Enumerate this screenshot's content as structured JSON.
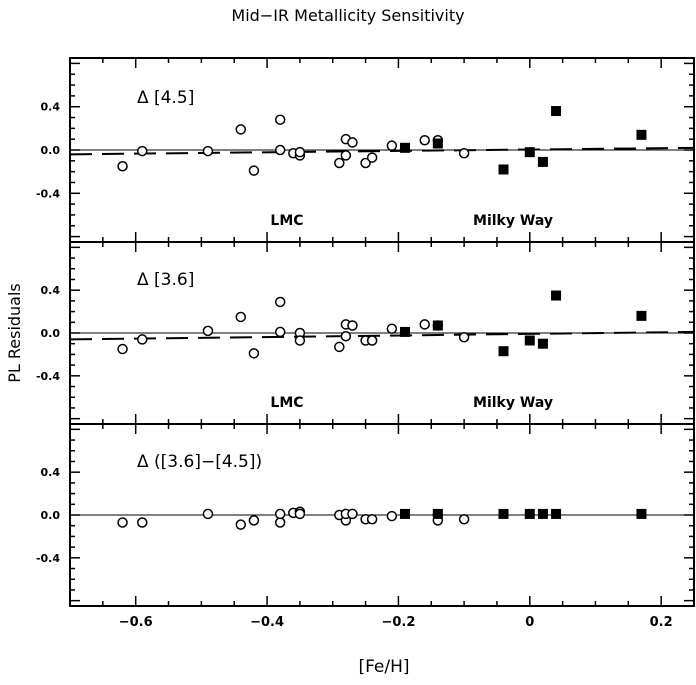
{
  "title": "Mid−IR Metallicity Sensitivity",
  "ylabel": "PL Residuals",
  "xlabel": "[Fe/H]",
  "chart_data": [
    {
      "type": "scatter",
      "panel_label": "Δ [4.5]",
      "xlim": [
        -0.7,
        0.25
      ],
      "ylim": [
        -0.85,
        0.85
      ],
      "xticks": [
        -0.6,
        -0.4,
        -0.2,
        0,
        0.2
      ],
      "xtick_labels": [
        "-0.6",
        "-0.4",
        "-0.2",
        "0",
        "0.2"
      ],
      "show_xtick_labels": false,
      "yticks": [
        -0.4,
        0.0,
        0.4
      ],
      "ytick_labels": [
        "-0.4",
        "0.0",
        "0.4"
      ],
      "annotations": [
        "LMC",
        "Milky Way"
      ],
      "zero_line": true,
      "fit_line": {
        "style": "dashed",
        "x": [
          -0.7,
          0.25
        ],
        "y": [
          -0.04,
          0.02
        ]
      },
      "series": [
        {
          "marker": "open-circle",
          "x": [
            -0.62,
            -0.59,
            -0.49,
            -0.44,
            -0.42,
            -0.38,
            -0.38,
            -0.36,
            -0.35,
            -0.35,
            -0.29,
            -0.28,
            -0.28,
            -0.27,
            -0.25,
            -0.24,
            -0.21,
            -0.16,
            -0.14,
            -0.1
          ],
          "y": [
            -0.15,
            -0.01,
            -0.01,
            0.19,
            -0.19,
            0.28,
            0.0,
            -0.03,
            -0.05,
            -0.02,
            -0.12,
            -0.05,
            0.1,
            0.07,
            -0.12,
            -0.07,
            0.04,
            0.09,
            0.09,
            -0.03
          ]
        },
        {
          "marker": "filled-square",
          "x": [
            -0.19,
            -0.14,
            -0.04,
            0.0,
            0.02,
            0.04,
            0.17
          ],
          "y": [
            0.02,
            0.06,
            -0.18,
            -0.02,
            -0.11,
            0.36,
            0.14
          ]
        }
      ]
    },
    {
      "type": "scatter",
      "panel_label": "Δ [3.6]",
      "xlim": [
        -0.7,
        0.25
      ],
      "ylim": [
        -0.85,
        0.85
      ],
      "xticks": [
        -0.6,
        -0.4,
        -0.2,
        0,
        0.2
      ],
      "xtick_labels": [
        "-0.6",
        "-0.4",
        "-0.2",
        "0",
        "0.2"
      ],
      "show_xtick_labels": false,
      "yticks": [
        -0.4,
        0.0,
        0.4
      ],
      "ytick_labels": [
        "-0.4",
        "0.0",
        "0.4"
      ],
      "annotations": [
        "LMC",
        "Milky Way"
      ],
      "zero_line": true,
      "fit_line": {
        "style": "dashed",
        "x": [
          -0.7,
          0.25
        ],
        "y": [
          -0.06,
          0.01
        ]
      },
      "series": [
        {
          "marker": "open-circle",
          "x": [
            -0.62,
            -0.59,
            -0.49,
            -0.44,
            -0.42,
            -0.38,
            -0.38,
            -0.35,
            -0.35,
            -0.29,
            -0.28,
            -0.28,
            -0.27,
            -0.25,
            -0.24,
            -0.21,
            -0.16,
            -0.14,
            -0.1
          ],
          "y": [
            -0.15,
            -0.06,
            0.02,
            0.15,
            -0.19,
            0.29,
            0.01,
            0.0,
            -0.07,
            -0.13,
            -0.03,
            0.08,
            0.07,
            -0.07,
            -0.07,
            0.04,
            0.08,
            0.07,
            -0.04
          ]
        },
        {
          "marker": "filled-square",
          "x": [
            -0.19,
            -0.14,
            -0.04,
            0.0,
            0.02,
            0.04,
            0.17
          ],
          "y": [
            0.01,
            0.07,
            -0.17,
            -0.07,
            -0.1,
            0.35,
            0.16
          ]
        }
      ]
    },
    {
      "type": "scatter",
      "panel_label": "Δ ([3.6]−[4.5])",
      "xlim": [
        -0.7,
        0.25
      ],
      "ylim": [
        -0.85,
        0.85
      ],
      "xticks": [
        -0.6,
        -0.4,
        -0.2,
        0,
        0.2
      ],
      "xtick_labels": [
        "−0.6",
        "−0.4",
        "−0.2",
        "0",
        "0.2"
      ],
      "show_xtick_labels": true,
      "yticks": [
        -0.4,
        0.0,
        0.4
      ],
      "ytick_labels": [
        "-0.4",
        "0.0",
        "0.4"
      ],
      "annotations": [],
      "zero_line": true,
      "series": [
        {
          "marker": "open-circle",
          "x": [
            -0.62,
            -0.59,
            -0.49,
            -0.44,
            -0.42,
            -0.38,
            -0.38,
            -0.36,
            -0.35,
            -0.35,
            -0.29,
            -0.28,
            -0.28,
            -0.27,
            -0.25,
            -0.24,
            -0.21,
            -0.14,
            -0.14,
            -0.1
          ],
          "y": [
            -0.07,
            -0.07,
            0.01,
            -0.09,
            -0.05,
            -0.07,
            0.01,
            0.02,
            0.03,
            0.01,
            0.0,
            -0.05,
            0.01,
            0.01,
            -0.04,
            -0.04,
            -0.01,
            0.0,
            -0.05,
            -0.04
          ]
        },
        {
          "marker": "filled-square",
          "x": [
            -0.19,
            -0.14,
            -0.04,
            0.0,
            0.02,
            0.04,
            0.17
          ],
          "y": [
            0.01,
            0.01,
            0.01,
            0.01,
            0.01,
            0.01,
            0.01
          ]
        }
      ]
    }
  ]
}
